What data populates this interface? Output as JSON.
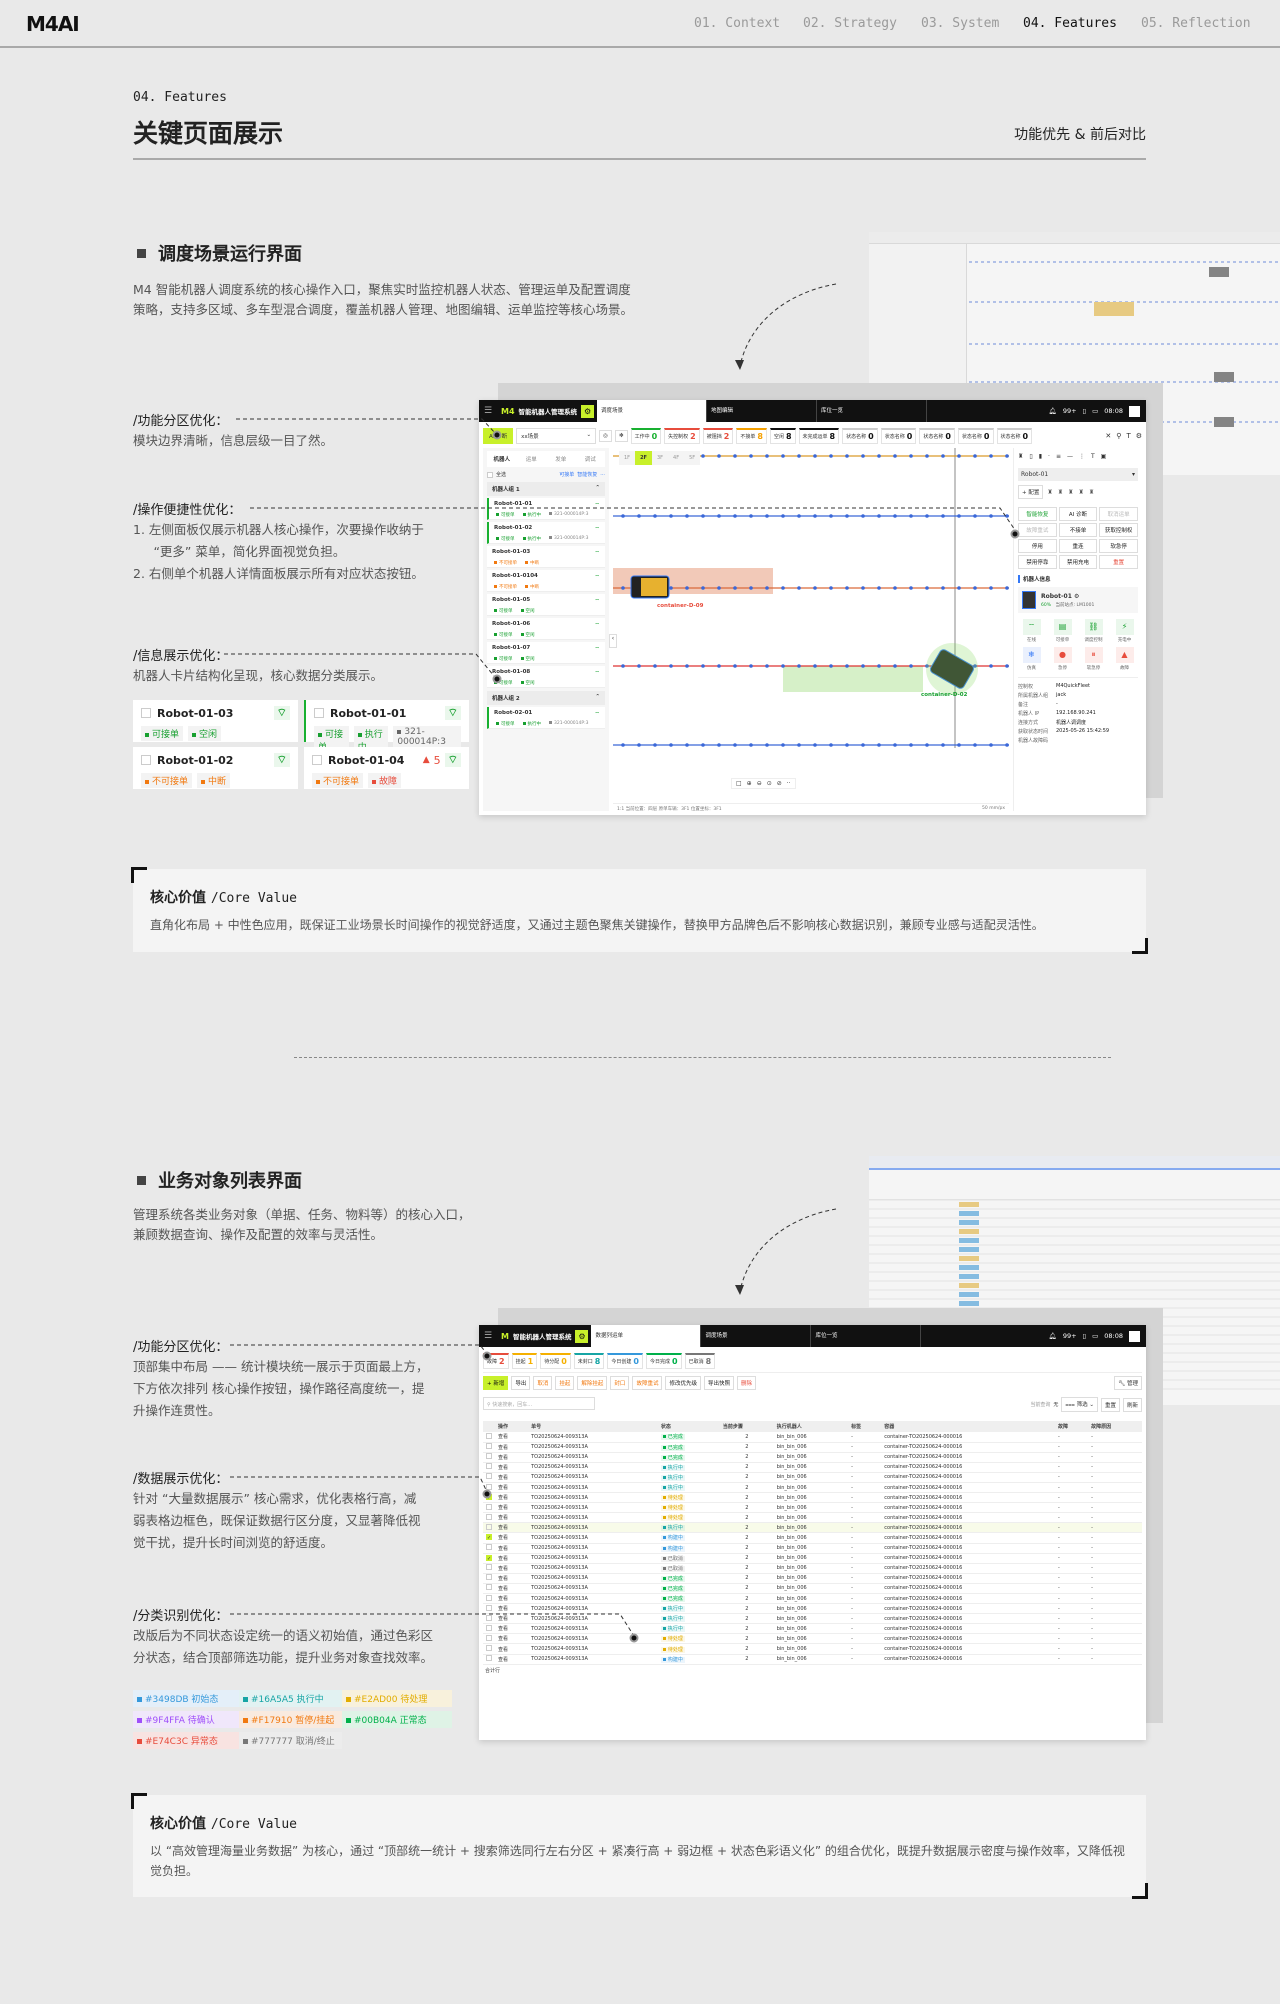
{
  "nav": {
    "logo": "M4AI",
    "items": [
      {
        "label": "01. Context"
      },
      {
        "label": "02. Strategy"
      },
      {
        "label": "03. System"
      },
      {
        "label": "04. Features",
        "active": true
      },
      {
        "label": "05. Reflection"
      }
    ]
  },
  "header": {
    "kicker": "04. Features",
    "title": "关键页面展示",
    "right": "功能优先 & 前后对比"
  },
  "section1": {
    "title": "调度场景运行界面",
    "desc": [
      "M4 智能机器人调度系统的核心操作入口，聚焦实时监控机器人状态、管理运单及配置调度",
      "策略，支持多区域、多车型混合调度，覆盖机器人管理、地图编辑、运单监控等核心场景。"
    ],
    "annotations": [
      {
        "title": "/功能分区优化：",
        "lines": [
          "模块边界清晰，信息层级一目了然。"
        ]
      },
      {
        "title": "/操作便捷性优化：",
        "lines": [
          "1. 左侧面板仅展示机器人核心操作，次要操作收纳于",
          "　  “更多” 菜单，简化界面视觉负担。",
          "2. 右侧单个机器人详情面板展示所有对应状态按钮。"
        ]
      },
      {
        "title": "/信息展示优化：",
        "lines": [
          "机器人卡片结构化呈现，核心数据分类展示。"
        ]
      }
    ],
    "cards": [
      {
        "name": "Robot-01-03",
        "tags": [
          {
            "t": "可接单",
            "c": "#18a030"
          },
          {
            "t": "空闲",
            "c": "#18a030"
          }
        ]
      },
      {
        "name": "Robot-01-01",
        "active": true,
        "tags": [
          {
            "t": "可接单",
            "c": "#18a030"
          },
          {
            "t": "执行中",
            "c": "#18a030"
          },
          {
            "t": "321-000014P:3",
            "c": "#666"
          }
        ]
      },
      {
        "name": "Robot-01-02",
        "tags": [
          {
            "t": "不可接单",
            "c": "#f17910"
          },
          {
            "t": "中断",
            "c": "#f17910"
          }
        ]
      },
      {
        "name": "Robot-01-04",
        "alert": "5",
        "tags": [
          {
            "t": "不可接单",
            "c": "#f17910"
          },
          {
            "t": "故障",
            "c": "#e74c3c"
          }
        ]
      }
    ],
    "core": {
      "title": "核心价值",
      "sub": "/Core Value",
      "text": "直角化布局 + 中性色应用，既保证工业场景长时间操作的视觉舒适度，又通过主题色聚焦关键操作，替换甲方品牌色后不影响核心数据识别，兼顾专业感与适配灵活性。"
    }
  },
  "mock1": {
    "app_logo": "M4",
    "app_title": "智能机器人管理系统",
    "tabs": [
      "调度场景",
      "地图编辑",
      "库位一览"
    ],
    "notif": "99+",
    "time": "08:08",
    "ai_btn": "AI 诊断",
    "scene": "xx场景",
    "chips": [
      {
        "l": "工作中",
        "v": "0",
        "c": "#18b030"
      },
      {
        "l": "失控制权",
        "v": "2",
        "c": "#e74c3c"
      },
      {
        "l": "被阻挡",
        "v": "2",
        "c": "#e74c3c"
      },
      {
        "l": "不接单",
        "v": "8",
        "c": "#f5a000"
      },
      {
        "l": "空闲",
        "v": "8",
        "c": "#111"
      },
      {
        "l": "未完成运单",
        "v": "8",
        "c": "#111"
      },
      {
        "l": "状态名称",
        "v": "0",
        "c": "#ccc"
      },
      {
        "l": "状态名称",
        "v": "0",
        "c": "#ccc"
      },
      {
        "l": "状态名称",
        "v": "0",
        "c": "#ccc"
      },
      {
        "l": "状态名称",
        "v": "0",
        "c": "#ccc"
      },
      {
        "l": "状态名称",
        "v": "0",
        "c": "#ccc"
      }
    ],
    "left_tabs": [
      "机器人",
      "运单",
      "发单",
      "调试"
    ],
    "select_all": "全选",
    "link1": "可接单",
    "link2": "智能恢复",
    "more": "···",
    "group1": "机器人组 1",
    "group2": "机器人组 2",
    "robots": [
      {
        "n": "Robot-01-01",
        "on": true,
        "tags": [
          [
            "可接单",
            "#18a030"
          ],
          [
            "执行中",
            "#18a030"
          ],
          [
            "321-000014P:3",
            "#888"
          ]
        ]
      },
      {
        "n": "Robot-01-02",
        "on": true,
        "tags": [
          [
            "可接单",
            "#18a030"
          ],
          [
            "执行中",
            "#18a030"
          ],
          [
            "321-000014P:3",
            "#888"
          ]
        ]
      },
      {
        "n": "Robot-01-03",
        "tags": [
          [
            "不可接单",
            "#f17910"
          ],
          [
            "中断",
            "#f17910"
          ]
        ]
      },
      {
        "n": "Robot-01-0104",
        "tags": [
          [
            "不可接单",
            "#f17910"
          ],
          [
            "中断",
            "#f17910"
          ]
        ]
      },
      {
        "n": "Robot-01-05",
        "tags": [
          [
            "可接单",
            "#18a030"
          ],
          [
            "空闲",
            "#18a030"
          ]
        ]
      },
      {
        "n": "Robot-01-06",
        "tags": [
          [
            "可接单",
            "#18a030"
          ],
          [
            "空闲",
            "#18a030"
          ]
        ]
      },
      {
        "n": "Robot-01-07",
        "tags": [
          [
            "可接单",
            "#18a030"
          ],
          [
            "空闲",
            "#18a030"
          ]
        ]
      },
      {
        "n": "Robot-01-08",
        "tags": [
          [
            "可接单",
            "#18a030"
          ],
          [
            "空闲",
            "#18a030"
          ]
        ]
      }
    ],
    "robots2": [
      {
        "n": "Robot-02-01",
        "on": true,
        "tags": [
          [
            "可接单",
            "#18a030"
          ],
          [
            "执行中",
            "#18a030"
          ],
          [
            "321-000014P:3",
            "#888"
          ]
        ]
      }
    ],
    "floors": [
      "1F",
      "2F",
      "3F",
      "4F",
      "5F"
    ],
    "active_floor": "2F",
    "containers": [
      "container-D-09",
      "container-D-02"
    ],
    "map_footer": "1:1  当前位置：四层  原单车辆：3F1  位置坐标：3F1",
    "scale": "50 mm/px",
    "right": {
      "robot_select": "Robot-01",
      "config": "+ 配置",
      "actions": [
        {
          "t": "智能恢复",
          "c": "#18a030"
        },
        {
          "t": "AI 诊断",
          "c": "#222"
        },
        {
          "t": "取消运单",
          "c": "#bbb"
        },
        {
          "t": "故障重试",
          "c": "#bbb"
        },
        {
          "t": "不接单",
          "c": "#222"
        },
        {
          "t": "获取控制权",
          "c": "#222"
        },
        {
          "t": "停用",
          "c": "#222"
        },
        {
          "t": "重连",
          "c": "#222"
        },
        {
          "t": "软急停",
          "c": "#222"
        },
        {
          "t": "禁用停靠",
          "c": "#222"
        },
        {
          "t": "禁用充电",
          "c": "#222"
        },
        {
          "t": "重置",
          "c": "#e74c3c"
        }
      ],
      "info_title": "机器人信息",
      "robot_name": "Robot-01",
      "battery": "60%",
      "station_label": "当前站点:",
      "station": "LM1001",
      "status_icons": [
        {
          "t": "在线",
          "g": "⌔",
          "c": "#18a030",
          "bg": "#eaf7ec"
        },
        {
          "t": "可接单",
          "g": "▤",
          "c": "#18a030",
          "bg": "#eaf7ec"
        },
        {
          "t": "调度控制",
          "g": "⛓",
          "c": "#18a030",
          "bg": "#eaf7ec"
        },
        {
          "t": "充电中",
          "g": "⚡",
          "c": "#18a030",
          "bg": "#eaf7ec"
        },
        {
          "t": "仿真",
          "g": "❄",
          "c": "#3478f6",
          "bg": "#eaf0fd"
        },
        {
          "t": "急停",
          "g": "●",
          "c": "#e74c3c",
          "bg": "#fdecea"
        },
        {
          "t": "软急停",
          "g": "⏸",
          "c": "#e74c3c",
          "bg": "#fdecea"
        },
        {
          "t": "故障",
          "g": "▲",
          "c": "#e74c3c",
          "bg": "#fdecea"
        }
      ],
      "kv": [
        [
          "控制权",
          "M4QuickFleet"
        ],
        [
          "所属机器人组",
          "jack"
        ],
        [
          "备注",
          "-"
        ],
        [
          "机器人 IP",
          "192.168.90.241"
        ],
        [
          "连接方式",
          "机器人调调度"
        ],
        [
          "获取状态时间",
          "2025-05-26 15:42:59"
        ],
        [
          "机器人故障码",
          ""
        ]
      ]
    }
  },
  "section2": {
    "title": "业务对象列表界面",
    "desc": [
      "管理系统各类业务对象（单据、任务、物料等）的核心入口，",
      "兼顾数据查询、操作及配置的效率与灵活性。"
    ],
    "annotations": [
      {
        "title": "/功能分区优化：",
        "lines": [
          "顶部集中布局 —— 统计模块统一展示于页面最上方，",
          "下方依次排列 核心操作按钮，操作路径高度统一，提",
          "升操作连贯性。"
        ]
      },
      {
        "title": "/数据展示优化：",
        "lines": [
          "针对 “大量数据展示” 核心需求，优化表格行高，减",
          "弱表格边框色，既保证数据行区分度，又显著降低视",
          "觉干扰，提升长时间浏览的舒适度。"
        ]
      },
      {
        "title": "/分类识别优化：",
        "lines": [
          "改版后为不同状态设定统一的语义初始值，通过色彩区",
          "分状态，结合顶部筛选功能，提升业务对象查找效率。"
        ]
      }
    ],
    "legend": [
      {
        "label": "#3498DB 初始态",
        "color": "#3498DB",
        "bg": "#e4eff9"
      },
      {
        "label": "#16A5A5 执行中",
        "color": "#16A5A5",
        "bg": "#e2f2f2"
      },
      {
        "label": "#E2AD00 待处理",
        "color": "#E2AD00",
        "bg": "#f8f1dc"
      },
      {
        "label": "#9F4FFA 待确认",
        "color": "#9F4FFA",
        "bg": "#f0e7fb"
      },
      {
        "label": "#F17910 暂停/挂起",
        "color": "#F17910",
        "bg": "#f9eadf"
      },
      {
        "label": "#00B04A 正常态",
        "color": "#00B04A",
        "bg": "#dff3e6"
      },
      {
        "label": "#E74C3C 异常态",
        "color": "#E74C3C",
        "bg": "#f8e3e1"
      },
      {
        "label": "#777777 取消/终止",
        "color": "#777777",
        "bg": "#ececec"
      }
    ],
    "core": {
      "title": "核心价值",
      "sub": "/Core Value",
      "text": "以 “高效管理海量业务数据” 为核心，通过 “顶部统一统计 + 搜索筛选同行左右分区 + 紧凑行高 + 弱边框 + 状态色彩语义化” 的组合优化，既提升数据展示密度与操作效率，又降低视觉负担。"
    }
  },
  "mock2": {
    "app_logo": "M",
    "app_title": "智能机器人管理系统",
    "tabs": [
      "数据列运单",
      "调度场景",
      "库位一览"
    ],
    "notif": "99+",
    "time": "08:08",
    "stats": [
      {
        "l": "故障",
        "v": "2",
        "c": "#e74c3c"
      },
      {
        "l": "挂起",
        "v": "1",
        "c": "#f5b000"
      },
      {
        "l": "待分配",
        "v": "0",
        "c": "#f5b000"
      },
      {
        "l": "未封口",
        "v": "8",
        "c": "#16a5a5"
      },
      {
        "l": "今日创建",
        "v": "0",
        "c": "#3498db"
      },
      {
        "l": "今日完成",
        "v": "0",
        "c": "#00b04a"
      },
      {
        "l": "已取消",
        "v": "8",
        "c": "#777"
      }
    ],
    "buttons": [
      {
        "t": "+ 新增",
        "c": "#111",
        "bg": "#c8f02a"
      },
      {
        "t": "导出",
        "c": "#222"
      },
      {
        "t": "取消",
        "c": "#f17910"
      },
      {
        "t": "挂起",
        "c": "#f17910"
      },
      {
        "t": "解除挂起",
        "c": "#f17910"
      },
      {
        "t": "封口",
        "c": "#f17910"
      },
      {
        "t": "故障重试",
        "c": "#f17910"
      },
      {
        "t": "修改优先级",
        "c": "#222"
      },
      {
        "t": "导出快照",
        "c": "#222"
      },
      {
        "t": "删除",
        "c": "#e74c3c"
      }
    ],
    "manage": "管理",
    "search_placeholder": "快速搜索，回车...",
    "query_label": "当前查询",
    "query_value": "无",
    "filter": "筛选",
    "reset": "重置",
    "refresh": "刷新",
    "columns": [
      "操作",
      "单号",
      "状态",
      "当前步骤",
      "执行机器人",
      "标签",
      "容器",
      "故障",
      "故障原因"
    ],
    "row_template": {
      "action": "查看",
      "id": "TO20250624-009313A",
      "step": "2",
      "robot": "bin_bin_006",
      "tag": "-",
      "container": "container-TO20250624-000016",
      "fault": "-",
      "reason": "-"
    },
    "rows": [
      {
        "status": "已完成",
        "color": "#00b04a"
      },
      {
        "status": "已完成",
        "color": "#00b04a"
      },
      {
        "status": "已完成",
        "color": "#00b04a"
      },
      {
        "status": "执行中",
        "color": "#16a5a5"
      },
      {
        "status": "执行中",
        "color": "#16a5a5"
      },
      {
        "status": "执行中",
        "color": "#16a5a5"
      },
      {
        "status": "待处理",
        "color": "#e2ad00",
        "checked": true
      },
      {
        "status": "待处理",
        "color": "#e2ad00"
      },
      {
        "status": "待处理",
        "color": "#e2ad00"
      },
      {
        "status": "执行中",
        "color": "#16a5a5",
        "highlight": true
      },
      {
        "status": "构建中",
        "color": "#3498db",
        "checked": true
      },
      {
        "status": "构建中",
        "color": "#3498db"
      },
      {
        "status": "已取消",
        "color": "#777777",
        "checked": true
      },
      {
        "status": "已取消",
        "color": "#777777"
      },
      {
        "status": "已完成",
        "color": "#00b04a"
      },
      {
        "status": "已完成",
        "color": "#00b04a"
      },
      {
        "status": "已完成",
        "color": "#00b04a"
      },
      {
        "status": "执行中",
        "color": "#16a5a5"
      },
      {
        "status": "执行中",
        "color": "#16a5a5"
      },
      {
        "status": "执行中",
        "color": "#16a5a5"
      },
      {
        "status": "待处理",
        "color": "#e2ad00"
      },
      {
        "status": "待处理",
        "color": "#e2ad00"
      },
      {
        "status": "构建中",
        "color": "#3498db"
      }
    ],
    "footer": "合计行"
  }
}
